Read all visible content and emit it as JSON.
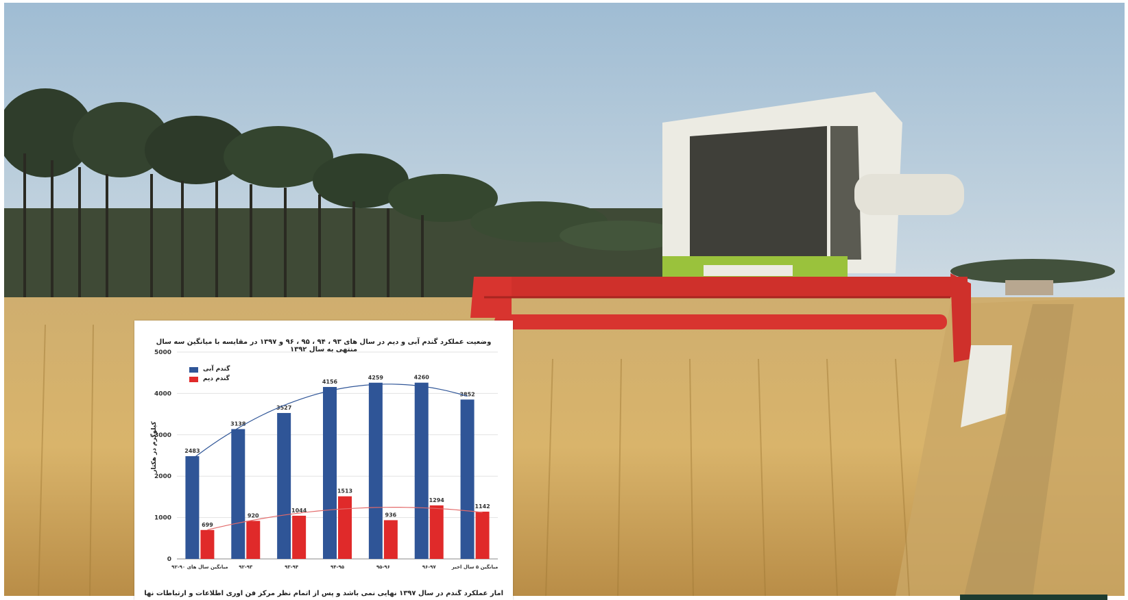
{
  "colors": {
    "sky": "#b7ccdb",
    "wheat": "#d8b46a",
    "header_red": "#d8342f",
    "combine_body": "#ecebe3",
    "combine_green": "#9ac23c",
    "bar_blue": "#2f5597",
    "bar_red": "#e02a2a"
  },
  "chart_data": {
    "type": "bar",
    "title": "وضعیت عملکرد گندم آبی و دیم در سال های ۹۳ ، ۹۴ ، ۹۵ ، ۹۶ و ۱۳۹۷ در مقایسه با میانگین سه سال منتهی به سال ۱۳۹۲",
    "ylabel": "کیلوگرم در هکتار",
    "ylim": [
      0,
      5000
    ],
    "yticks": [
      "0",
      "1000",
      "2000",
      "3000",
      "4000",
      "5000"
    ],
    "categories": [
      "میانگین سال های ۹۰-۹۲",
      "۹۲-۹۳",
      "۹۳-۹۴",
      "۹۴-۹۵",
      "۹۵-۹۶",
      "۹۶-۹۷",
      "میانگین ۵ سال اخیر"
    ],
    "series": [
      {
        "name": "گندم آبی",
        "color": "#2f5597",
        "values": [
          2483,
          3138,
          3527,
          4156,
          4259,
          4260,
          3852
        ]
      },
      {
        "name": "گندم دیم",
        "color": "#e02a2a",
        "values": [
          699,
          920,
          1044,
          1513,
          936,
          1294,
          1142
        ]
      }
    ],
    "trendlines": true,
    "legend_position": "top-left",
    "footnote": "آمار عملکرد گندم در سال ۱۳۹۷ نهایی نمی باشد و پس از اتمام نظر مرکز فن آوری اطلاعات و ارتباطات نهایی خواهد شد."
  }
}
